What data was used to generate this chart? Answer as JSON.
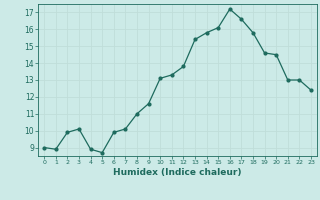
{
  "x": [
    0,
    1,
    2,
    3,
    4,
    5,
    6,
    7,
    8,
    9,
    10,
    11,
    12,
    13,
    14,
    15,
    16,
    17,
    18,
    19,
    20,
    21,
    22,
    23
  ],
  "y": [
    9.0,
    8.9,
    9.9,
    10.1,
    8.9,
    8.7,
    9.9,
    10.1,
    11.0,
    11.6,
    13.1,
    13.3,
    13.8,
    15.4,
    15.8,
    16.1,
    17.2,
    16.6,
    15.8,
    14.6,
    14.5,
    13.0,
    13.0,
    12.4
  ],
  "line_color": "#1e6b5e",
  "marker": "o",
  "markersize": 2.0,
  "linewidth": 0.9,
  "xlabel": "Humidex (Indice chaleur)",
  "xlim": [
    -0.5,
    23.5
  ],
  "ylim": [
    8.5,
    17.5
  ],
  "yticks": [
    9,
    10,
    11,
    12,
    13,
    14,
    15,
    16,
    17
  ],
  "xticks": [
    0,
    1,
    2,
    3,
    4,
    5,
    6,
    7,
    8,
    9,
    10,
    11,
    12,
    13,
    14,
    15,
    16,
    17,
    18,
    19,
    20,
    21,
    22,
    23
  ],
  "bg_color": "#cceae7",
  "grid_color": "#c0ddd9",
  "tick_color": "#1e6b5e",
  "label_color": "#1e6b5e",
  "xlabel_fontsize": 6.5,
  "ytick_fontsize": 5.5,
  "xtick_fontsize": 4.5
}
